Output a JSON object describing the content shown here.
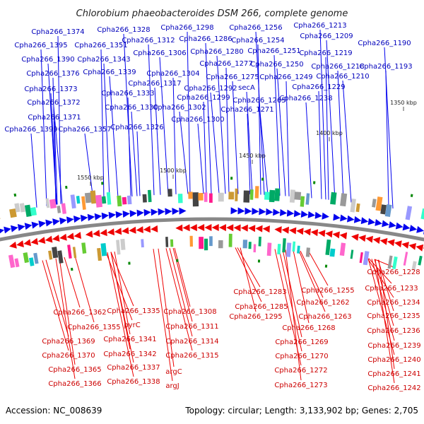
{
  "title": "Chlorobium phaeobacteroides DSM 266, complete genome",
  "footer": {
    "accession": "Accession: NC_008639",
    "topology": "Topology: circular; Length: 3,133,902 bp; Genes: 2,705"
  },
  "colors": {
    "forward": "#0000ee",
    "reverse": "#ee0000",
    "forward_label": "#0000bb",
    "reverse_label": "#cc0000",
    "backbone": "#888888",
    "rna": "#0a8a0a"
  },
  "ticks": [
    "1550 kbp",
    "1500 kbp",
    "1450 kbp",
    "1400 kbp",
    "1350 kbp"
  ],
  "forward_labels": [
    "Cpha266_1374",
    "Cpha266_1395",
    "Cpha266_1390",
    "Cpha266_1376",
    "Cpha266_1373",
    "Cpha266_1372",
    "Cpha266_1371",
    "Cpha266_1399",
    "Cpha266_1328",
    "Cpha266_1351",
    "Cpha266_1343",
    "Cpha266_1339",
    "Cpha266_1333",
    "Cpha266_1330",
    "Cpha266_1357",
    "Cpha266_1326",
    "Cpha266_1312",
    "Cpha266_1306",
    "Cpha266_1304",
    "Cpha266_1317",
    "Cpha266_1302",
    "Cpha266_1298",
    "Cpha266_1286",
    "Cpha266_1280",
    "Cpha266_1277",
    "Cpha266_1275",
    "Cpha266_1292",
    "Cpha266_1299",
    "Cpha266_1300",
    "Cpha266_1256",
    "Cpha266_1254",
    "Cpha266_1251",
    "Cpha266_1250",
    "Cpha266_1249",
    "secA",
    "Cpha266_1265",
    "Cpha266_1271",
    "Cpha266_1213",
    "Cpha266_1209",
    "Cpha266_1219",
    "Cpha266_1218",
    "Cpha266_1210",
    "Cpha266_1229",
    "Cpha266_1238",
    "Cpha266_1190",
    "Cpha266_1193"
  ],
  "reverse_labels": [
    "Cpha266_1362",
    "Cpha266_1355",
    "Cpha266_1369",
    "Cpha266_1370",
    "Cpha266_1365",
    "Cpha266_1366",
    "Cpha266_1335",
    "pyrC",
    "Cpha266_1341",
    "Cpha266_1342",
    "Cpha266_1337",
    "Cpha266_1338",
    "Cpha266_1308",
    "Cpha266_1311",
    "Cpha266_1314",
    "Cpha266_1315",
    "argC",
    "argJ",
    "Cpha266_1283",
    "Cpha266_1285",
    "Cpha266_1295",
    "Cpha266_1255",
    "Cpha266_1262",
    "Cpha266_1263",
    "Cpha266_1268",
    "Cpha266_1269",
    "Cpha266_1270",
    "Cpha266_1272",
    "Cpha266_1273",
    "Cpha266_1228",
    "Cpha266_1233",
    "Cpha266_1234",
    "Cpha266_1235",
    "Cpha266_1236",
    "Cpha266_1239",
    "Cpha266_1240",
    "Cpha266_1241",
    "Cpha266_1242"
  ]
}
